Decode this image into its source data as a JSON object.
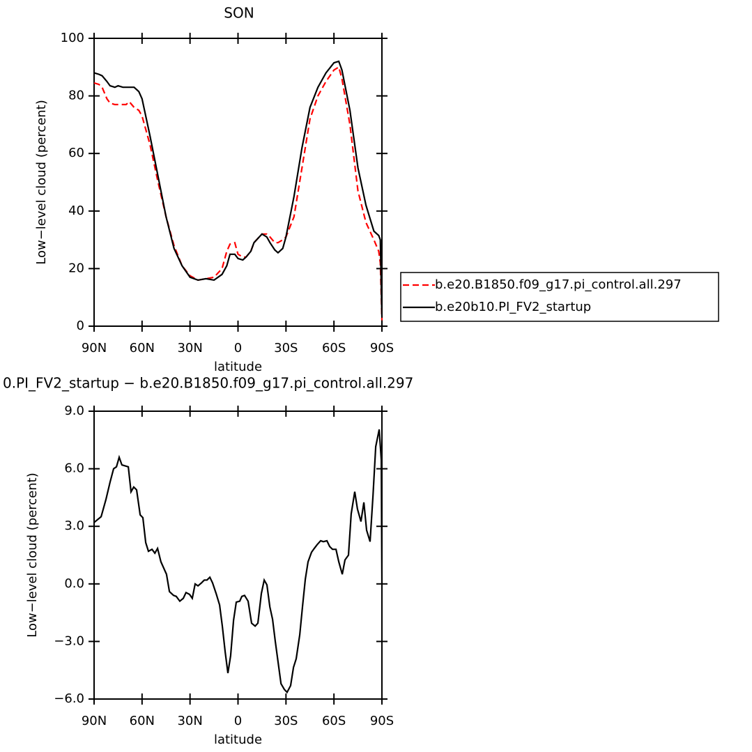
{
  "chart_data": [
    {
      "type": "line",
      "title": "SON",
      "xlabel": "latitude",
      "ylabel": "Low−level cloud (percent)",
      "x": [
        90,
        87,
        85,
        82,
        80,
        77,
        75,
        72,
        70,
        68,
        65,
        62,
        60,
        55,
        50,
        45,
        40,
        35,
        30,
        25,
        20,
        15,
        10,
        7,
        5,
        2,
        0,
        -3,
        -5,
        -8,
        -10,
        -15,
        -18,
        -20,
        -23,
        -25,
        -28,
        -30,
        -35,
        -40,
        -45,
        -50,
        -55,
        -60,
        -63,
        -65,
        -70,
        -75,
        -80,
        -85,
        -88,
        -89,
        -90
      ],
      "series": [
        {
          "name": "b.e20.B1850.f09_g17.pi_control.all.297",
          "color": "#ff0000",
          "linestyle": "dashed",
          "values": [
            84.5,
            84,
            83,
            79,
            77.5,
            77,
            77,
            77,
            77,
            78,
            76,
            75,
            73,
            63,
            50,
            38,
            28,
            21,
            17.5,
            16,
            16.5,
            17,
            20,
            26,
            28.5,
            29,
            25,
            24,
            24,
            26,
            29,
            32,
            32,
            31,
            29,
            29,
            30,
            31,
            38,
            55,
            72,
            80,
            85,
            89,
            90,
            86,
            70,
            47,
            36,
            30,
            26,
            22,
            2
          ]
        },
        {
          "name": "b.e20b10.PI_FV2_startup",
          "color": "#000000",
          "linestyle": "solid",
          "values": [
            88,
            87.5,
            87,
            85,
            83.5,
            83,
            83.5,
            83,
            83,
            83,
            83,
            81.5,
            79,
            66,
            52,
            38,
            27,
            21,
            17,
            16,
            16.5,
            16,
            18,
            21,
            25,
            25,
            23.5,
            23,
            24,
            26,
            29,
            32,
            31,
            29,
            26.5,
            25.5,
            27,
            31,
            45,
            62,
            76,
            83,
            88,
            91.5,
            92,
            89,
            75,
            55,
            42,
            33,
            31.5,
            30,
            3
          ]
        }
      ],
      "xlim": [
        90,
        -90
      ],
      "xticks": [
        {
          "value": 90,
          "label": "90N"
        },
        {
          "value": 60,
          "label": "60N"
        },
        {
          "value": 30,
          "label": "30N"
        },
        0,
        {
          "value": -30,
          "label": "30S"
        },
        {
          "value": -60,
          "label": "60S"
        },
        {
          "value": -90,
          "label": "90S"
        }
      ],
      "ylim": [
        0,
        100
      ],
      "yticks": [
        0,
        20,
        40,
        60,
        80,
        100
      ],
      "legend": "right"
    },
    {
      "type": "line",
      "title": "0.PI_FV2_startup − b.e20.B1850.f09_g17.pi_control.all.297",
      "xlabel": "latitude",
      "ylabel": "Low−level cloud (percent)",
      "x": [
        90,
        85.6,
        82.6,
        80,
        77.8,
        76,
        74.3,
        72.6,
        68.6,
        66.9,
        65.2,
        63.4,
        61.2,
        59.5,
        57.7,
        56,
        53.8,
        52,
        50.3,
        48.2,
        44.7,
        42.9,
        40.3,
        38.6,
        36.4,
        34.2,
        32.5,
        30.3,
        28.6,
        26.8,
        25,
        22.9,
        21.1,
        19.4,
        17.6,
        15.9,
        13.7,
        11.5,
        9.8,
        8,
        6.3,
        4.6,
        2.8,
        1.1,
        -1.1,
        -2.4,
        -4.1,
        -6.3,
        -8.5,
        -10.7,
        -12.4,
        -14.6,
        -16.4,
        -18.1,
        -19.9,
        -21.6,
        -23.3,
        -25.1,
        -26.9,
        -29,
        -30.7,
        -32.9,
        -34.7,
        -36.4,
        -38.6,
        -40.3,
        -42.1,
        -43.8,
        -46,
        -47.7,
        -49.5,
        -51.7,
        -53.4,
        -55.6,
        -57.3,
        -59.1,
        -61.3,
        -63,
        -65.2,
        -66.9,
        -69.1,
        -70.8,
        -73,
        -74.7,
        -76.9,
        -78.7,
        -80.4,
        -82.6,
        -84.4,
        -86.1,
        -88.3,
        -89.6,
        -90
      ],
      "series": [
        {
          "name": null,
          "color": "#000000",
          "linestyle": "solid",
          "values": [
            3.2,
            3.5,
            4.4,
            5.3,
            6.0,
            6.1,
            6.6,
            6.2,
            6.1,
            4.8,
            5.05,
            4.9,
            3.6,
            3.45,
            2.15,
            1.7,
            1.8,
            1.6,
            1.85,
            1.15,
            0.5,
            -0.4,
            -0.6,
            -0.65,
            -0.9,
            -0.75,
            -0.45,
            -0.55,
            -0.75,
            0,
            -0.1,
            0.05,
            0.2,
            0.2,
            0.35,
            0.05,
            -0.5,
            -1.1,
            -2.2,
            -3.55,
            -4.65,
            -3.75,
            -1.9,
            -0.95,
            -0.9,
            -0.65,
            -0.6,
            -0.9,
            -2.05,
            -2.2,
            -2.05,
            -0.5,
            0.2,
            -0.05,
            -1.2,
            -1.85,
            -3.0,
            -4.1,
            -5.2,
            -5.5,
            -5.65,
            -5.3,
            -4.35,
            -3.9,
            -2.65,
            -1.2,
            0.25,
            1.15,
            1.65,
            1.85,
            2.05,
            2.25,
            2.2,
            2.25,
            1.95,
            1.8,
            1.8,
            1.15,
            0.5,
            1.25,
            1.5,
            3.65,
            4.8,
            3.9,
            3.25,
            4.25,
            2.8,
            2.2,
            4.6,
            7.15,
            8.05,
            6.45,
            0
          ]
        }
      ],
      "xlim": [
        90,
        -90
      ],
      "xticks": [
        {
          "value": 90,
          "label": "90N"
        },
        {
          "value": 60,
          "label": "60N"
        },
        {
          "value": 30,
          "label": "30N"
        },
        0,
        {
          "value": -30,
          "label": "30S"
        },
        {
          "value": -60,
          "label": "60S"
        },
        {
          "value": -90,
          "label": "90S"
        }
      ],
      "ylim": [
        -6,
        9
      ],
      "yticks": [
        {
          "value": -6,
          "label": "−6.0"
        },
        {
          "value": -3,
          "label": "−3.0"
        },
        {
          "value": 0,
          "label": "0.0"
        },
        {
          "value": 3,
          "label": "3.0"
        },
        {
          "value": 6,
          "label": "6.0"
        },
        {
          "value": 9,
          "label": "9.0"
        }
      ]
    }
  ]
}
